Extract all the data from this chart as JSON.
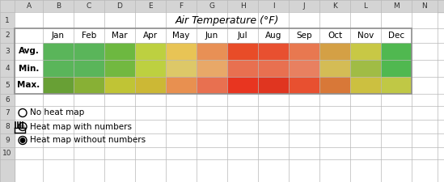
{
  "title": "Air Temperature (°F)",
  "months": [
    "Jan",
    "Feb",
    "Mar",
    "Apr",
    "May",
    "Jun",
    "Jul",
    "Aug",
    "Sep",
    "Oct",
    "Nov",
    "Dec"
  ],
  "row_labels": [
    "Avg.",
    "Min.",
    "Max."
  ],
  "col_letters": [
    "A",
    "B",
    "C",
    "D",
    "E",
    "F",
    "G",
    "H",
    "I",
    "J",
    "K",
    "L",
    "M",
    "N"
  ],
  "heat_colors": [
    [
      "#5ab55a",
      "#5ab55a",
      "#6db840",
      "#bdd040",
      "#e8c455",
      "#e89055",
      "#e84c28",
      "#e85030",
      "#e87850",
      "#d4a045",
      "#c8c845",
      "#50b850"
    ],
    [
      "#5ab55a",
      "#5ab55a",
      "#72b840",
      "#bdd040",
      "#ddc868",
      "#e8a868",
      "#e87050",
      "#e87050",
      "#e88060",
      "#d4bc55",
      "#a0bc45",
      "#50b850"
    ],
    [
      "#68a035",
      "#88b035",
      "#c0c435",
      "#ccb835",
      "#e89050",
      "#e87050",
      "#e83520",
      "#e03520",
      "#e85030",
      "#d87838",
      "#ccc040",
      "#c0c845"
    ]
  ],
  "radio_labels": [
    "No heat map",
    "Heat map with numbers",
    "Heat map without numbers"
  ],
  "header_bg": "#e0e0e0",
  "cell_bg": "#ffffff",
  "grid_color": "#b8b8b8",
  "border_color": "#808080"
}
